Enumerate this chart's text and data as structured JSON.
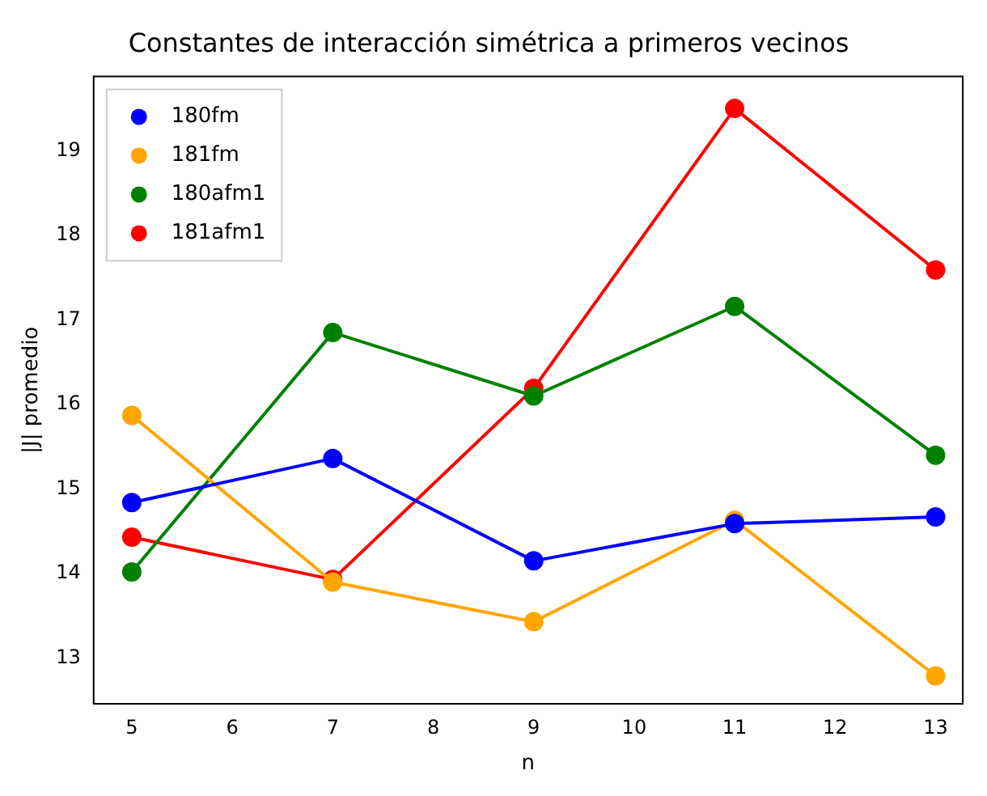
{
  "chart_data": {
    "type": "line",
    "title": "Constantes de interacción simétrica a primeros vecinos",
    "xlabel": "n",
    "ylabel": "|J| promedio",
    "x": [
      5,
      7,
      9,
      11,
      13
    ],
    "series": [
      {
        "name": "180fm",
        "color": "#0000ff",
        "values": [
          14.84,
          15.36,
          14.15,
          14.59,
          14.67
        ]
      },
      {
        "name": "181fm",
        "color": "#ffa500",
        "values": [
          15.87,
          13.9,
          13.43,
          14.63,
          12.79
        ]
      },
      {
        "name": "180afm1",
        "color": "#008000",
        "values": [
          14.02,
          16.85,
          16.1,
          17.16,
          15.4
        ]
      },
      {
        "name": "181afm1",
        "color": "#ff0000",
        "values": [
          14.43,
          13.93,
          16.19,
          19.5,
          17.59
        ]
      }
    ],
    "xlim": [
      4.62,
      13.27
    ],
    "xticks": [
      5,
      6,
      7,
      8,
      9,
      10,
      11,
      12,
      13
    ],
    "ylim": [
      12.46,
      19.88
    ],
    "yticks": [
      13,
      14,
      15,
      16,
      17,
      18,
      19
    ],
    "grid": false,
    "legend": "top left",
    "marker": "circle",
    "line_style": "solid"
  }
}
